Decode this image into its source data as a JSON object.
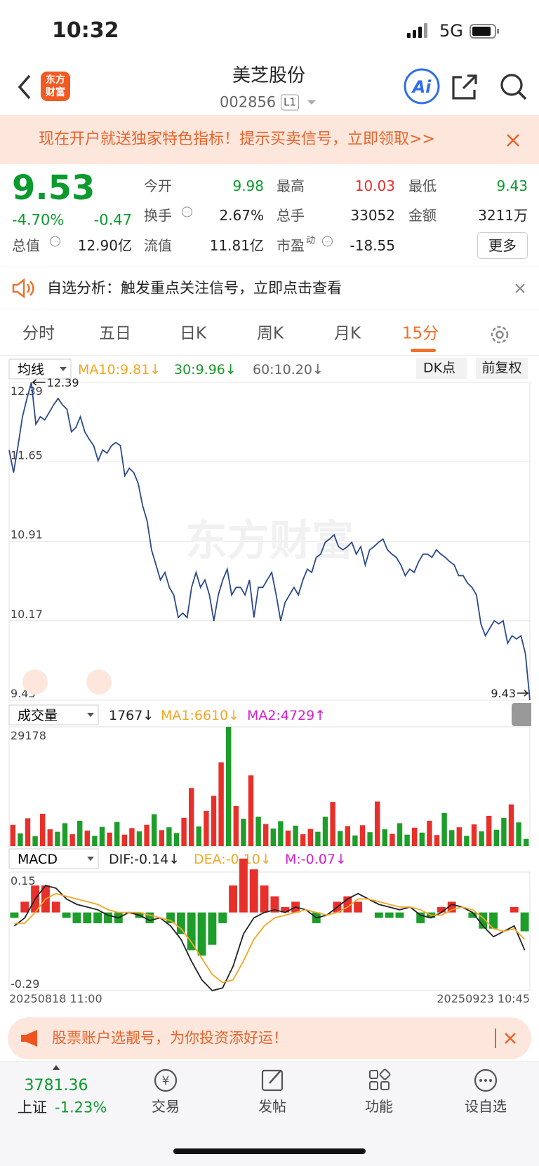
{
  "status_bar": {
    "time": "10:32",
    "network": "5G"
  },
  "header": {
    "logo": [
      "东方",
      "财富"
    ],
    "title": "美芝股份",
    "code": "002856",
    "level": "L1",
    "ai": "Ai"
  },
  "banner": {
    "text": "现在开户就送独家特色指标！提示买卖信号，立即领取>>"
  },
  "quote": {
    "price": "9.53",
    "change_pct": "-4.70%",
    "change": "-0.47",
    "stats": [
      {
        "label": "今开",
        "value": "9.98"
      },
      {
        "label": "最高",
        "value": "10.03"
      },
      {
        "label": "最低",
        "value": "9.43"
      },
      {
        "label": "换手",
        "value": "2.67%"
      },
      {
        "label": "总手",
        "value": "33052"
      },
      {
        "label": "金额",
        "value": "3211万"
      },
      {
        "label": "总值",
        "value": "12.90亿"
      },
      {
        "label": "流值",
        "value": "11.81亿"
      },
      {
        "label": "市盈",
        "sup": "动",
        "value": "-18.55"
      }
    ],
    "more": "更多"
  },
  "notice": {
    "text": "自选分析：触发重点关注信号，立即点击查看"
  },
  "tabs": [
    "分时",
    "五日",
    "日K",
    "周K",
    "月K",
    "15分"
  ],
  "controls": {
    "dk": "DK点",
    "adjust": "前复权"
  },
  "promo": {
    "text": "股票账户选靓号，为你投资添好运！"
  },
  "index": {
    "value": "3781.36",
    "name": "上证",
    "change": "-1.23%"
  },
  "nav": [
    "交易",
    "发帖",
    "功能",
    "设自选"
  ],
  "chart_data": [
    {
      "type": "line",
      "indicator": "均线",
      "legend": [
        {
          "text": "MA10:9.81↓",
          "color": "#f5a623"
        },
        {
          "text": "30:9.96↓",
          "color": "#1a9a2a"
        },
        {
          "text": "60:10.20↓",
          "color": "#666666"
        }
      ],
      "watermark": "东方财富",
      "color": "#2b4a8b",
      "values": [
        11.76,
        11.55,
        11.8,
        12.07,
        12.24,
        12.39,
        12.0,
        12.07,
        12.04,
        12.11,
        12.18,
        12.24,
        12.18,
        12.14,
        11.93,
        11.97,
        12.07,
        11.93,
        11.86,
        11.8,
        11.66,
        11.76,
        11.73,
        11.8,
        11.83,
        11.8,
        11.52,
        11.59,
        11.55,
        11.45,
        11.24,
        11.1,
        10.83,
        10.69,
        10.55,
        10.62,
        10.48,
        10.41,
        10.2,
        10.24,
        10.2,
        10.48,
        10.62,
        10.48,
        10.55,
        10.41,
        10.17,
        10.41,
        10.55,
        10.65,
        10.41,
        10.48,
        10.48,
        10.41,
        10.55,
        10.2,
        10.48,
        10.48,
        10.55,
        10.62,
        10.41,
        10.17,
        10.34,
        10.41,
        10.48,
        10.41,
        10.55,
        10.65,
        10.62,
        10.76,
        10.79,
        10.9,
        10.93,
        10.97,
        10.86,
        10.83,
        10.86,
        10.9,
        10.79,
        10.86,
        10.69,
        10.83,
        10.86,
        10.9,
        10.93,
        10.83,
        10.79,
        10.76,
        10.69,
        10.59,
        10.65,
        10.62,
        10.72,
        10.79,
        10.79,
        10.76,
        10.83,
        10.79,
        10.76,
        10.72,
        10.69,
        10.59,
        10.59,
        10.52,
        10.48,
        10.41,
        10.14,
        10.03,
        10.1,
        10.17,
        10.14,
        10.17,
        9.96,
        10.03,
        10.0,
        10.03,
        9.86,
        9.43
      ],
      "ylim": [
        9.43,
        12.39
      ],
      "yticks": [
        12.39,
        11.65,
        10.91,
        10.17,
        9.43
      ],
      "grid": true,
      "annotations": [
        "12.39",
        "9.43"
      ]
    },
    {
      "type": "bar",
      "indicator": "成交量",
      "legend": [
        {
          "text": "1767↓",
          "color": "#222222"
        },
        {
          "text": "MA1:6610↓",
          "color": "#f5a623"
        },
        {
          "text": "MA2:4729↑",
          "color": "#d020d0"
        }
      ],
      "values": [
        5200,
        3100,
        6800,
        2400,
        7900,
        4100,
        3500,
        5600,
        2900,
        6200,
        3800,
        2500,
        4700,
        3300,
        5900,
        2800,
        4400,
        3600,
        5200,
        7800,
        3900,
        4600,
        3200,
        6900,
        14200,
        4800,
        8600,
        12300,
        20500,
        29178,
        9800,
        6700,
        17300,
        7200,
        5400,
        4300,
        6100,
        3800,
        5000,
        2900,
        4200,
        3500,
        7200,
        10800,
        3700,
        4900,
        2600,
        5100,
        3400,
        10900,
        4100,
        3000,
        5600,
        2800,
        4500,
        3300,
        6200,
        2700,
        8100,
        3900,
        4600,
        2500,
        5300,
        3600,
        7400,
        4000,
        6900,
        10200,
        5800,
        1767
      ],
      "colors": [
        "#e8302a",
        "#1d9e2a",
        "#e8302a",
        "#1d9e2a",
        "#e8302a",
        "#e8302a",
        "#1d9e2a",
        "#1d9e2a",
        "#e8302a",
        "#1d9e2a",
        "#e8302a",
        "#1d9e2a",
        "#1d9e2a",
        "#e8302a",
        "#1d9e2a",
        "#e8302a",
        "#e8302a",
        "#1d9e2a",
        "#e8302a",
        "#1d9e2a",
        "#e8302a",
        "#1d9e2a",
        "#1d9e2a",
        "#e8302a",
        "#e8302a",
        "#1d9e2a",
        "#e8302a",
        "#e8302a",
        "#e8302a",
        "#1d9e2a",
        "#e8302a",
        "#1d9e2a",
        "#e8302a",
        "#1d9e2a",
        "#e8302a",
        "#1d9e2a",
        "#1d9e2a",
        "#e8302a",
        "#1d9e2a",
        "#e8302a",
        "#e8302a",
        "#1d9e2a",
        "#1d9e2a",
        "#e8302a",
        "#1d9e2a",
        "#e8302a",
        "#1d9e2a",
        "#e8302a",
        "#1d9e2a",
        "#e8302a",
        "#1d9e2a",
        "#e8302a",
        "#1d9e2a",
        "#1d9e2a",
        "#e8302a",
        "#1d9e2a",
        "#e8302a",
        "#e8302a",
        "#1d9e2a",
        "#1d9e2a",
        "#e8302a",
        "#1d9e2a",
        "#e8302a",
        "#1d9e2a",
        "#e8302a",
        "#1d9e2a",
        "#1d9e2a",
        "#e8302a",
        "#1d9e2a",
        "#1d9e2a"
      ],
      "ylim": [
        0,
        29178
      ],
      "yticks": [
        29178
      ]
    },
    {
      "type": "macd",
      "indicator": "MACD",
      "legend": [
        {
          "text": "DIF:-0.14↓",
          "color": "#222222"
        },
        {
          "text": "DEA:-0.10↓",
          "color": "#f5a623"
        },
        {
          "text": "M:-0.07↓",
          "color": "#d020d0"
        }
      ],
      "series": [
        {
          "color": "#222222",
          "values": [
            -0.05,
            -0.02,
            0.05,
            0.1,
            0.09,
            0.05,
            0.03,
            0.02,
            0.01,
            -0.01,
            -0.02,
            0.0,
            -0.01,
            -0.03,
            -0.02,
            -0.05,
            -0.1,
            -0.18,
            -0.25,
            -0.29,
            -0.28,
            -0.2,
            -0.08,
            -0.02,
            0.0,
            0.01,
            0.0,
            0.02,
            0.01,
            -0.02,
            -0.01,
            0.02,
            0.05,
            0.07,
            0.05,
            0.03,
            0.02,
            0.01,
            0.02,
            -0.01,
            -0.02,
            0.0,
            0.03,
            0.02,
            0.0,
            -0.05,
            -0.09,
            -0.07,
            -0.05,
            -0.14
          ]
        },
        {
          "color": "#f5a623",
          "values": [
            -0.04,
            -0.04,
            0.0,
            0.05,
            0.07,
            0.06,
            0.05,
            0.04,
            0.03,
            0.01,
            0.0,
            0.0,
            0.0,
            -0.01,
            -0.02,
            -0.03,
            -0.06,
            -0.11,
            -0.17,
            -0.23,
            -0.26,
            -0.25,
            -0.18,
            -0.1,
            -0.05,
            -0.02,
            -0.01,
            0.0,
            0.01,
            0.0,
            -0.01,
            0.0,
            0.02,
            0.05,
            0.05,
            0.04,
            0.03,
            0.02,
            0.02,
            0.01,
            -0.01,
            -0.01,
            0.01,
            0.02,
            0.01,
            -0.02,
            -0.06,
            -0.07,
            -0.06,
            -0.1
          ]
        }
      ],
      "histogram": {
        "values": [
          -0.02,
          0.04,
          0.1,
          0.1,
          0.04,
          -0.02,
          -0.04,
          -0.04,
          -0.04,
          -0.04,
          -0.04,
          0.0,
          -0.02,
          -0.04,
          0.0,
          -0.04,
          -0.08,
          -0.14,
          -0.16,
          -0.12,
          -0.04,
          0.1,
          0.2,
          0.16,
          0.1,
          0.06,
          0.02,
          0.04,
          0.0,
          -0.04,
          0.0,
          0.04,
          0.06,
          0.04,
          0.0,
          -0.02,
          -0.02,
          -0.02,
          0.0,
          -0.04,
          -0.02,
          0.02,
          0.04,
          0.0,
          -0.02,
          -0.06,
          -0.06,
          0.0,
          0.02,
          -0.07
        ],
        "up_color": "#e8302a",
        "down_color": "#1d9e2a"
      },
      "ylim": [
        -0.29,
        0.15
      ],
      "yticks": [
        0.15,
        -0.29
      ],
      "x_labels": [
        "20250818 11:00",
        "20250923 10:45"
      ]
    }
  ]
}
